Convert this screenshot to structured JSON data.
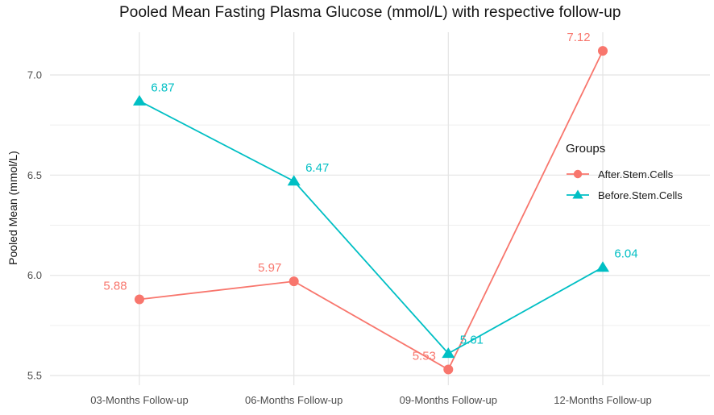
{
  "chart_data": {
    "type": "line",
    "title": "Pooled Mean Fasting Plasma Glucose (mmol/L) with respective follow-up",
    "xlabel": "",
    "ylabel": "Pooled Mean (mmol/L)",
    "categories": [
      "03-Months Follow-up",
      "06-Months Follow-up",
      "09-Months Follow-up",
      "12-Months Follow-up"
    ],
    "series": [
      {
        "name": "After.Stem.Cells",
        "color": "#f8766d",
        "marker": "circle",
        "values": [
          5.88,
          5.97,
          5.53,
          7.12
        ],
        "labels": [
          "5.88",
          "5.97",
          "5.53",
          "7.12"
        ]
      },
      {
        "name": "Before.Stem.Cells",
        "color": "#00bfc4",
        "marker": "triangle",
        "values": [
          6.87,
          6.47,
          5.61,
          6.04
        ],
        "labels": [
          "6.87",
          "6.47",
          "5.61",
          "6.04"
        ]
      }
    ],
    "y_ticks": [
      "5.5",
      "6.0",
      "6.5",
      "7.0"
    ],
    "y_tick_values": [
      5.5,
      6.0,
      6.5,
      7.0
    ],
    "y_minor_values": [
      5.75,
      6.25,
      6.75
    ],
    "ylim": [
      5.45,
      7.21
    ],
    "grid": true,
    "legend": {
      "title": "Groups",
      "position": "inside-right"
    },
    "colors": {
      "grid_major": "#e4e4e4",
      "grid_minor": "#efefef",
      "axis_text": "#4d4d4d",
      "title_text": "#141414"
    }
  }
}
